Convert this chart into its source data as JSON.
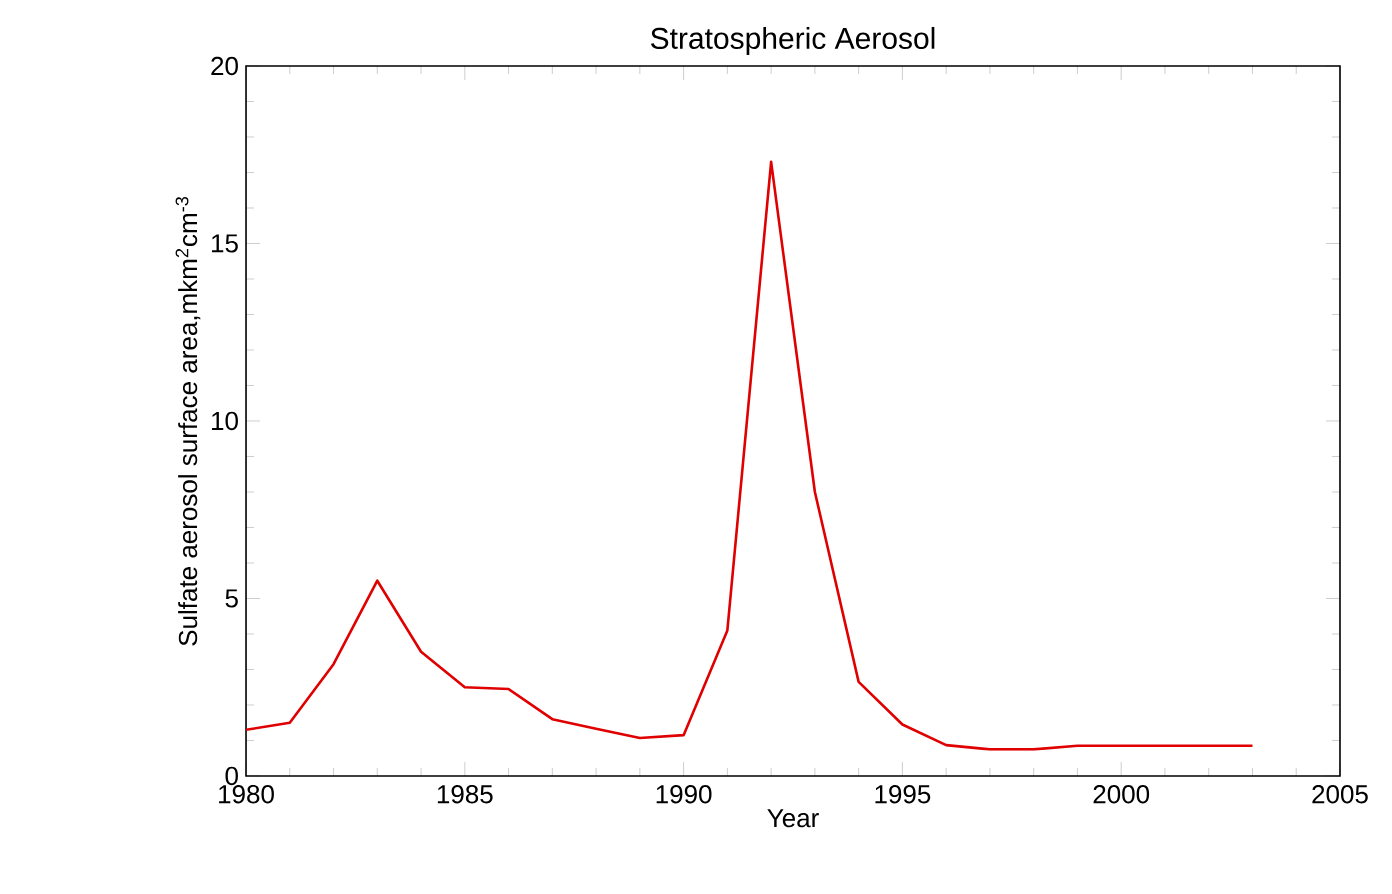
{
  "chart_data": {
    "type": "line",
    "title": "Stratospheric Aerosol",
    "xlabel": "Year",
    "ylabel": "Sulfate aerosol surface area,mkm$^{2}$cm$^{-3}$",
    "x": [
      1980,
      1981,
      1982,
      1983,
      1984,
      1985,
      1986,
      1987,
      1988,
      1989,
      1990,
      1991,
      1992,
      1993,
      1994,
      1995,
      1996,
      1997,
      1998,
      1999,
      2000,
      2001,
      2002,
      2003
    ],
    "series": [
      {
        "color": "#e00000",
        "values": [
          1.3,
          1.5,
          3.15,
          5.5,
          3.5,
          2.5,
          2.45,
          1.6,
          1.33,
          1.07,
          1.15,
          4.1,
          17.3,
          8.0,
          2.65,
          1.45,
          0.87,
          0.75,
          0.75,
          0.85,
          0.85,
          0.85,
          0.85,
          0.85
        ]
      }
    ],
    "xlim": [
      1980,
      2005
    ],
    "xticks": [
      1980,
      1985,
      1990,
      1995,
      2000,
      2005
    ],
    "ylim": [
      0,
      20
    ],
    "yticks": [
      0,
      5,
      10,
      15,
      20
    ],
    "grid": false,
    "marker": "none",
    "line_style": "solid"
  }
}
